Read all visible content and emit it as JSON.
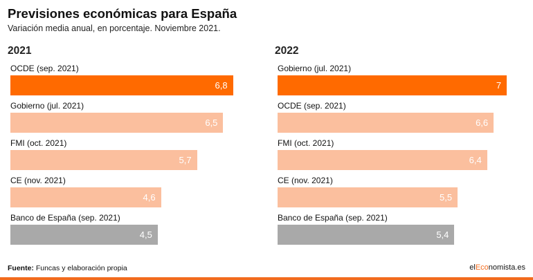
{
  "header": {
    "title": "Previsiones económicas para España",
    "subtitle": "Variación media anual, en porcentaje. Noviembre 2021."
  },
  "colors": {
    "highlight": "#ff6a00",
    "regular": "#fbbf9e",
    "bank": "#a9a9a9"
  },
  "chart_data": [
    {
      "type": "bar",
      "title": "2021",
      "orientation": "horizontal",
      "xlim": [
        0,
        7.4
      ],
      "categories": [
        "OCDE (sep. 2021)",
        "Gobierno (jul. 2021)",
        "FMI (oct. 2021)",
        "CE (nov. 2021)",
        "Banco de España (sep. 2021)"
      ],
      "values": [
        6.8,
        6.5,
        5.7,
        4.6,
        4.5
      ],
      "value_labels": [
        "6,8",
        "6,5",
        "5,7",
        "4,6",
        "4,5"
      ],
      "styles": [
        "highlight",
        "regular",
        "regular",
        "regular",
        "bank"
      ]
    },
    {
      "type": "bar",
      "title": "2022",
      "orientation": "horizontal",
      "xlim": [
        0,
        7.4
      ],
      "categories": [
        "Gobierno (jul. 2021)",
        "OCDE (sep. 2021)",
        "FMI (oct. 2021)",
        "CE (nov. 2021)",
        "Banco de España (sep. 2021)"
      ],
      "values": [
        7,
        6.6,
        6.4,
        5.5,
        5.4
      ],
      "value_labels": [
        "7",
        "6,6",
        "6,4",
        "5,5",
        "5,4"
      ],
      "styles": [
        "highlight",
        "regular",
        "regular",
        "regular",
        "bank"
      ]
    }
  ],
  "footer": {
    "source_label": "Fuente:",
    "source_text": " Funcas y elaboración propia",
    "brand_prefix": "el",
    "brand_accent": "Eco",
    "brand_suffix": "nomista.es"
  }
}
